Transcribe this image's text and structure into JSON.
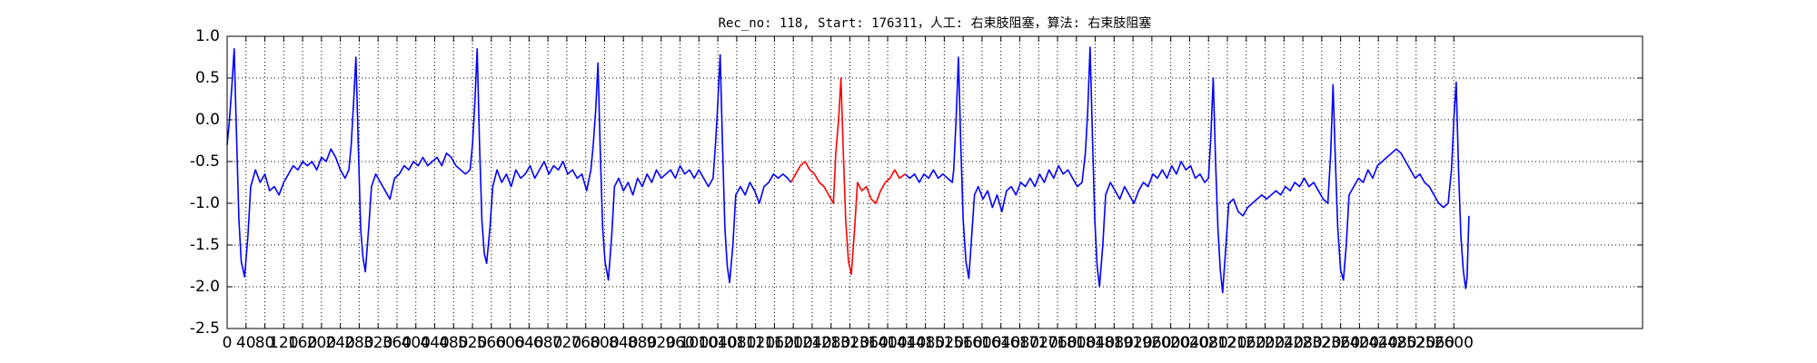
{
  "chart_data": {
    "type": "line",
    "title": "Rec_no: 118, Start: 176311，人工: 右束肢阻塞，算法: 右束肢阻塞",
    "grid": true,
    "xlim": [
      0,
      3000
    ],
    "xticks": [
      0,
      40,
      80,
      120,
      160,
      200,
      240,
      280,
      320,
      360,
      400,
      440,
      480,
      520,
      560,
      600,
      640,
      680,
      720,
      760,
      800,
      840,
      880,
      920,
      960,
      1000,
      1040,
      1080,
      1120,
      1160,
      1200,
      1240,
      1280,
      1320,
      1360,
      1400,
      1440,
      1480,
      1520,
      1560,
      1600,
      1640,
      1680,
      1720,
      1760,
      1800,
      1840,
      1880,
      1920,
      1960,
      2000,
      2040,
      2080,
      2120,
      2160,
      2200,
      2240,
      2280,
      2320,
      2360,
      2400,
      2440,
      2480,
      2520,
      2560,
      2600
    ],
    "ylim": [
      -2.5,
      1.0
    ],
    "yticks": [
      {
        "value": -2.5,
        "label": "-2.5"
      },
      {
        "value": -2,
        "label": "-2.0"
      },
      {
        "value": -1.5,
        "label": "-1.5"
      },
      {
        "value": -1,
        "label": "-1.0"
      },
      {
        "value": -0.5,
        "label": "-0.5"
      },
      {
        "value": 0,
        "label": "0.0"
      },
      {
        "value": 0.5,
        "label": "0.5"
      },
      {
        "value": 1,
        "label": "1.0"
      }
    ],
    "x": [
      0,
      5,
      10,
      15,
      20,
      25,
      30,
      37,
      44,
      50,
      60,
      70,
      80,
      90,
      100,
      110,
      120,
      130,
      140,
      150,
      160,
      170,
      180,
      190,
      200,
      210,
      220,
      230,
      240,
      250,
      258,
      263,
      268,
      273,
      278,
      283,
      288,
      293,
      300,
      306,
      315,
      325,
      335,
      345,
      355,
      365,
      375,
      385,
      395,
      405,
      415,
      425,
      435,
      445,
      455,
      465,
      475,
      485,
      495,
      505,
      515,
      520,
      525,
      530,
      535,
      540,
      545,
      550,
      557,
      563,
      572,
      582,
      592,
      602,
      612,
      622,
      632,
      642,
      652,
      662,
      672,
      682,
      692,
      702,
      712,
      722,
      732,
      742,
      752,
      762,
      771,
      776,
      781,
      786,
      791,
      796,
      801,
      808,
      815,
      821,
      830,
      840,
      850,
      860,
      870,
      880,
      890,
      900,
      910,
      920,
      930,
      940,
      950,
      960,
      970,
      980,
      990,
      1000,
      1010,
      1020,
      1030,
      1035,
      1040,
      1045,
      1050,
      1055,
      1060,
      1065,
      1072,
      1078,
      1088,
      1098,
      1108,
      1118,
      1128,
      1138,
      1148,
      1158,
      1168,
      1178,
      1188,
      1195,
      1205,
      1215,
      1225,
      1235,
      1245,
      1255,
      1265,
      1275,
      1285,
      1290,
      1296,
      1301,
      1306,
      1311,
      1317,
      1323,
      1330,
      1336,
      1345,
      1355,
      1365,
      1375,
      1385,
      1395,
      1405,
      1415,
      1425,
      1437,
      1447,
      1457,
      1467,
      1477,
      1487,
      1497,
      1507,
      1517,
      1527,
      1537,
      1540,
      1545,
      1550,
      1555,
      1560,
      1566,
      1572,
      1578,
      1584,
      1592,
      1602,
      1612,
      1622,
      1632,
      1642,
      1652,
      1662,
      1672,
      1682,
      1692,
      1702,
      1712,
      1722,
      1732,
      1742,
      1752,
      1762,
      1772,
      1782,
      1792,
      1802,
      1812,
      1819,
      1824,
      1829,
      1834,
      1839,
      1844,
      1849,
      1856,
      1862,
      1872,
      1882,
      1892,
      1902,
      1912,
      1922,
      1932,
      1942,
      1952,
      1962,
      1972,
      1982,
      1992,
      2002,
      2012,
      2022,
      2032,
      2042,
      2052,
      2062,
      2072,
      2080,
      2085,
      2090,
      2095,
      2100,
      2105,
      2110,
      2117,
      2123,
      2133,
      2143,
      2153,
      2163,
      2173,
      2183,
      2193,
      2203,
      2213,
      2223,
      2233,
      2243,
      2253,
      2263,
      2273,
      2283,
      2293,
      2303,
      2313,
      2323,
      2333,
      2339,
      2344,
      2349,
      2354,
      2360,
      2366,
      2372,
      2378,
      2388,
      2398,
      2408,
      2418,
      2428,
      2438,
      2448,
      2458,
      2468,
      2478,
      2488,
      2498,
      2508,
      2518,
      2528,
      2538,
      2548,
      2558,
      2568,
      2578,
      2588,
      2595,
      2600,
      2605,
      2610,
      2615,
      2620,
      2625,
      2628,
      2632
    ],
    "series": [
      {
        "color": "#0000ff",
        "values": [
          -0.3,
          0.0,
          0.4,
          0.85,
          -0.2,
          -1.2,
          -1.7,
          -1.88,
          -1.4,
          -0.8,
          -0.6,
          -0.75,
          -0.65,
          -0.85,
          -0.8,
          -0.9,
          -0.75,
          -0.65,
          -0.55,
          -0.6,
          -0.5,
          -0.55,
          -0.5,
          -0.6,
          -0.45,
          -0.5,
          -0.35,
          -0.45,
          -0.6,
          -0.7,
          -0.6,
          -0.3,
          0.2,
          0.75,
          -0.3,
          -1.3,
          -1.65,
          -1.82,
          -1.3,
          -0.8,
          -0.65,
          -0.75,
          -0.85,
          -0.95,
          -0.7,
          -0.65,
          -0.55,
          -0.6,
          -0.5,
          -0.55,
          -0.45,
          -0.55,
          -0.5,
          -0.45,
          -0.55,
          -0.4,
          -0.45,
          -0.55,
          -0.6,
          -0.65,
          -0.6,
          -0.3,
          0.2,
          0.85,
          -0.3,
          -1.2,
          -1.6,
          -1.72,
          -1.3,
          -0.8,
          -0.6,
          -0.75,
          -0.65,
          -0.8,
          -0.6,
          -0.7,
          -0.65,
          -0.55,
          -0.7,
          -0.6,
          -0.5,
          -0.65,
          -0.55,
          -0.6,
          -0.5,
          -0.65,
          -0.6,
          -0.7,
          -0.65,
          -0.85,
          -0.6,
          -0.3,
          0.1,
          0.68,
          -0.4,
          -1.3,
          -1.7,
          -1.92,
          -1.4,
          -0.8,
          -0.7,
          -0.85,
          -0.75,
          -0.9,
          -0.7,
          -0.8,
          -0.65,
          -0.75,
          -0.6,
          -0.7,
          -0.65,
          -0.6,
          -0.7,
          -0.55,
          -0.65,
          -0.6,
          -0.7,
          -0.6,
          -0.7,
          -0.8,
          -0.7,
          -0.3,
          0.2,
          0.78,
          -0.3,
          -1.3,
          -1.75,
          -1.95,
          -1.5,
          -0.9,
          -0.8,
          -0.9,
          -0.75,
          -0.85,
          -1.0,
          -0.8,
          -0.75,
          -0.65,
          -0.7,
          -0.65,
          -0.7,
          -0.75,
          null,
          null,
          null,
          null,
          null,
          null,
          null,
          null,
          null,
          null,
          null,
          null,
          null,
          null,
          null,
          null,
          null,
          null,
          null,
          null,
          null,
          null,
          null,
          null,
          null,
          null,
          null,
          -0.65,
          -0.7,
          -0.65,
          -0.75,
          -0.65,
          -0.7,
          -0.6,
          -0.7,
          -0.65,
          -0.7,
          -0.75,
          -0.6,
          0.0,
          0.75,
          -0.3,
          -1.2,
          -1.7,
          -1.9,
          -1.4,
          -0.9,
          -0.8,
          -0.95,
          -0.85,
          -1.05,
          -0.9,
          -1.1,
          -0.85,
          -0.8,
          -0.9,
          -0.75,
          -0.8,
          -0.7,
          -0.8,
          -0.65,
          -0.75,
          -0.6,
          -0.7,
          -0.55,
          -0.65,
          -0.6,
          -0.7,
          -0.8,
          -0.75,
          -0.4,
          0.1,
          0.87,
          -0.2,
          -1.2,
          -1.75,
          -2.0,
          -1.5,
          -0.9,
          -0.75,
          -0.85,
          -0.95,
          -0.8,
          -0.9,
          -1.0,
          -0.85,
          -0.75,
          -0.8,
          -0.65,
          -0.7,
          -0.6,
          -0.7,
          -0.55,
          -0.65,
          -0.5,
          -0.6,
          -0.55,
          -0.7,
          -0.65,
          -0.75,
          -0.7,
          -0.2,
          0.5,
          -0.5,
          -1.3,
          -1.8,
          -2.07,
          -1.5,
          -1.0,
          -0.95,
          -1.1,
          -1.15,
          -1.05,
          -1.0,
          -0.95,
          -0.9,
          -0.95,
          -0.9,
          -0.85,
          -0.9,
          -0.8,
          -0.85,
          -0.75,
          -0.8,
          -0.7,
          -0.8,
          -0.75,
          -0.85,
          -0.95,
          -1.0,
          -0.4,
          0.42,
          -0.5,
          -1.3,
          -1.8,
          -1.92,
          -1.5,
          -0.9,
          -0.8,
          -0.7,
          -0.75,
          -0.6,
          -0.7,
          -0.55,
          -0.5,
          -0.45,
          -0.4,
          -0.35,
          -0.4,
          -0.5,
          -0.6,
          -0.7,
          -0.65,
          -0.75,
          -0.8,
          -0.9,
          -1.0,
          -1.05,
          -1.0,
          -0.6,
          0.0,
          0.45,
          -0.6,
          -1.4,
          -1.8,
          -2.02,
          -1.9,
          -1.15
        ]
      },
      {
        "color": "#ff0000",
        "values": [
          null,
          null,
          null,
          null,
          null,
          null,
          null,
          null,
          null,
          null,
          null,
          null,
          null,
          null,
          null,
          null,
          null,
          null,
          null,
          null,
          null,
          null,
          null,
          null,
          null,
          null,
          null,
          null,
          null,
          null,
          null,
          null,
          null,
          null,
          null,
          null,
          null,
          null,
          null,
          null,
          null,
          null,
          null,
          null,
          null,
          null,
          null,
          null,
          null,
          null,
          null,
          null,
          null,
          null,
          null,
          null,
          null,
          null,
          null,
          null,
          null,
          null,
          null,
          null,
          null,
          null,
          null,
          null,
          null,
          null,
          null,
          null,
          null,
          null,
          null,
          null,
          null,
          null,
          null,
          null,
          null,
          null,
          null,
          null,
          null,
          null,
          null,
          null,
          null,
          null,
          null,
          null,
          null,
          null,
          null,
          null,
          null,
          null,
          null,
          null,
          null,
          null,
          null,
          null,
          null,
          null,
          null,
          null,
          null,
          null,
          null,
          null,
          null,
          null,
          null,
          null,
          null,
          null,
          null,
          null,
          null,
          null,
          null,
          null,
          null,
          null,
          null,
          null,
          null,
          null,
          null,
          null,
          null,
          null,
          null,
          null,
          null,
          null,
          null,
          null,
          null,
          -0.75,
          -0.65,
          -0.55,
          -0.5,
          -0.6,
          -0.65,
          -0.75,
          -0.8,
          -0.9,
          -1.0,
          -0.4,
          0.0,
          0.5,
          -0.4,
          -1.2,
          -1.7,
          -1.85,
          -1.3,
          -0.75,
          -0.85,
          -0.8,
          -0.95,
          -1.0,
          -0.85,
          -0.75,
          -0.7,
          -0.6,
          -0.7,
          -0.65,
          null,
          null,
          null,
          null,
          null,
          null,
          null,
          null,
          null,
          null,
          null,
          null,
          null,
          null,
          null,
          null,
          null,
          null,
          null,
          null,
          null,
          null,
          null,
          null,
          null,
          null,
          null,
          null,
          null,
          null,
          null,
          null,
          null,
          null,
          null,
          null,
          null,
          null,
          null,
          null,
          null,
          null,
          null,
          null,
          null,
          null,
          null,
          null,
          null,
          null,
          null,
          null,
          null,
          null,
          null,
          null,
          null,
          null,
          null,
          null,
          null,
          null,
          null,
          null,
          null,
          null,
          null,
          null,
          null,
          null,
          null,
          null,
          null,
          null,
          null,
          null,
          null,
          null,
          null,
          null,
          null,
          null,
          null,
          null,
          null,
          null,
          null,
          null,
          null,
          null,
          null,
          null,
          null,
          null,
          null,
          null,
          null,
          null,
          null,
          null,
          null,
          null,
          null,
          null,
          null,
          null,
          null,
          null,
          null,
          null,
          null,
          null,
          null,
          null,
          null,
          null,
          null,
          null,
          null,
          null,
          null,
          null,
          null,
          null,
          null,
          null,
          null,
          null,
          null,
          null,
          null,
          null,
          null,
          null,
          null,
          null,
          null,
          null,
          null,
          null
        ]
      }
    ]
  }
}
